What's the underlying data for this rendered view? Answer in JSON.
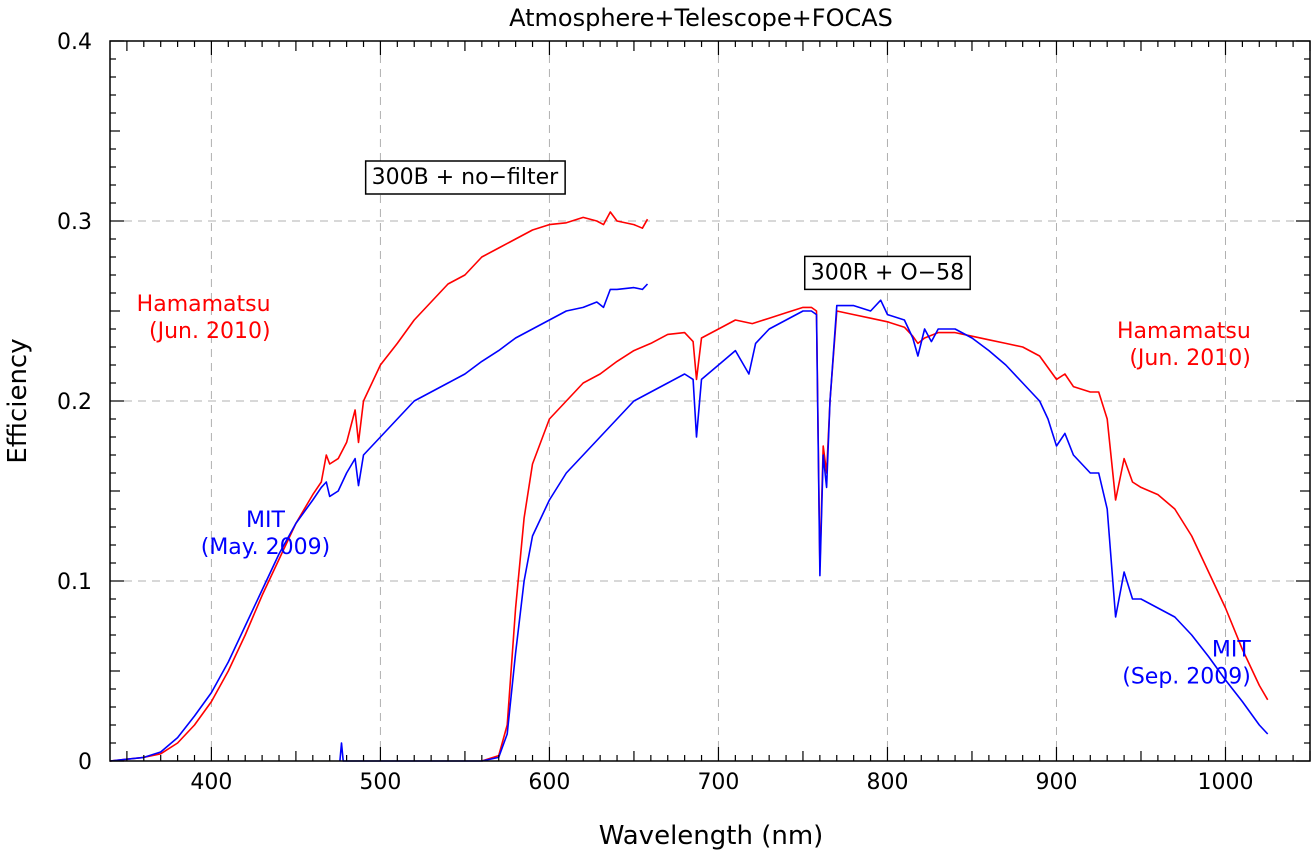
{
  "chart_data": {
    "type": "line",
    "title": "Atmosphere+Telescope+FOCAS",
    "xlabel": "Wavelength (nm)",
    "ylabel": "Efficiency",
    "xlim": [
      340,
      1050
    ],
    "ylim": [
      0,
      0.4
    ],
    "x_ticks": [
      400,
      500,
      600,
      700,
      800,
      900,
      1000
    ],
    "y_ticks": [
      0,
      0.1,
      0.2,
      0.3,
      0.4
    ],
    "y_tick_labels": [
      "0",
      "0.1",
      "0.2",
      "0.3",
      "0.4"
    ],
    "grid": true,
    "colors": {
      "hamamatsu": "#ff0000",
      "mit": "#0000ff"
    },
    "boxes": [
      {
        "label": "300B + no−filter",
        "x": 550,
        "y": 0.325
      },
      {
        "label": "300R + O−58",
        "x": 800,
        "y": 0.272
      }
    ],
    "annotations": [
      {
        "lines": [
          "Hamamatsu",
          "(Jun. 2010)"
        ],
        "x": 435,
        "y": 0.25,
        "color": "#ff0000",
        "align": "end"
      },
      {
        "lines": [
          "MIT",
          "(May. 2009)"
        ],
        "x": 432,
        "y": 0.13,
        "color": "#0000ff",
        "align": "middle"
      },
      {
        "lines": [
          "Hamamatsu",
          "(Jun. 2010)"
        ],
        "x": 1015,
        "y": 0.235,
        "color": "#ff0000",
        "align": "end"
      },
      {
        "lines": [
          "MIT",
          "(Sep. 2009)"
        ],
        "x": 1015,
        "y": 0.058,
        "color": "#0000ff",
        "align": "end"
      }
    ],
    "series": [
      {
        "name": "Hamamatsu (Jun. 2010) 300B + no−filter",
        "color": "#ff0000",
        "x": [
          340,
          360,
          370,
          380,
          390,
          400,
          410,
          420,
          430,
          440,
          450,
          460,
          465,
          468,
          470,
          475,
          480,
          485,
          487,
          490,
          500,
          510,
          520,
          530,
          540,
          550,
          560,
          570,
          580,
          590,
          600,
          610,
          620,
          628,
          632,
          636,
          640,
          650,
          655,
          658
        ],
        "y": [
          0,
          0.002,
          0.004,
          0.01,
          0.02,
          0.033,
          0.05,
          0.07,
          0.092,
          0.112,
          0.132,
          0.148,
          0.155,
          0.17,
          0.165,
          0.168,
          0.177,
          0.195,
          0.177,
          0.2,
          0.22,
          0.232,
          0.245,
          0.255,
          0.265,
          0.27,
          0.28,
          0.285,
          0.29,
          0.295,
          0.298,
          0.299,
          0.302,
          0.3,
          0.298,
          0.305,
          0.3,
          0.298,
          0.296,
          0.301
        ]
      },
      {
        "name": "MIT (May. 2009) 300B + no−filter",
        "color": "#0000ff",
        "x": [
          340,
          360,
          370,
          380,
          390,
          400,
          410,
          420,
          430,
          440,
          450,
          460,
          465,
          468,
          470,
          475,
          480,
          485,
          487,
          490,
          500,
          510,
          520,
          530,
          540,
          550,
          560,
          570,
          580,
          590,
          600,
          610,
          620,
          628,
          632,
          636,
          640,
          650,
          655,
          658
        ],
        "y": [
          0,
          0.002,
          0.005,
          0.013,
          0.025,
          0.038,
          0.055,
          0.075,
          0.095,
          0.115,
          0.132,
          0.145,
          0.152,
          0.155,
          0.147,
          0.15,
          0.16,
          0.168,
          0.153,
          0.17,
          0.18,
          0.19,
          0.2,
          0.205,
          0.21,
          0.215,
          0.222,
          0.228,
          0.235,
          0.24,
          0.245,
          0.25,
          0.252,
          0.255,
          0.252,
          0.262,
          0.262,
          0.263,
          0.262,
          0.265
        ]
      },
      {
        "name": "Hamamatsu (Jun. 2010) 300R + O−58",
        "color": "#ff0000",
        "x": [
          560,
          570,
          575,
          580,
          585,
          590,
          600,
          610,
          620,
          630,
          640,
          650,
          660,
          670,
          680,
          685,
          687,
          690,
          700,
          710,
          720,
          730,
          740,
          750,
          755,
          758,
          760,
          762,
          764,
          766,
          770,
          780,
          790,
          800,
          810,
          815,
          818,
          822,
          830,
          840,
          850,
          860,
          870,
          880,
          890,
          900,
          905,
          910,
          920,
          925,
          930,
          935,
          940,
          945,
          950,
          960,
          970,
          980,
          990,
          1000,
          1010,
          1020,
          1025
        ],
        "y": [
          0,
          0.003,
          0.02,
          0.085,
          0.135,
          0.165,
          0.19,
          0.2,
          0.21,
          0.215,
          0.222,
          0.228,
          0.232,
          0.237,
          0.238,
          0.233,
          0.212,
          0.235,
          0.24,
          0.245,
          0.243,
          0.246,
          0.249,
          0.252,
          0.252,
          0.25,
          0.108,
          0.175,
          0.16,
          0.2,
          0.25,
          0.248,
          0.246,
          0.244,
          0.241,
          0.236,
          0.232,
          0.235,
          0.238,
          0.238,
          0.236,
          0.234,
          0.232,
          0.23,
          0.225,
          0.212,
          0.215,
          0.208,
          0.205,
          0.205,
          0.19,
          0.145,
          0.168,
          0.155,
          0.152,
          0.148,
          0.14,
          0.125,
          0.105,
          0.085,
          0.062,
          0.042,
          0.034
        ]
      },
      {
        "name": "MIT (Sep. 2009) 300R + O−58",
        "color": "#0000ff",
        "x": [
          476,
          477,
          478,
          560,
          570,
          575,
          580,
          585,
          590,
          600,
          610,
          620,
          630,
          640,
          650,
          660,
          670,
          680,
          685,
          687,
          690,
          700,
          710,
          718,
          722,
          730,
          740,
          750,
          755,
          758,
          760,
          762,
          764,
          766,
          770,
          780,
          790,
          796,
          800,
          810,
          815,
          818,
          822,
          826,
          830,
          840,
          850,
          860,
          870,
          880,
          890,
          895,
          900,
          905,
          910,
          920,
          925,
          930,
          935,
          940,
          945,
          950,
          960,
          970,
          980,
          990,
          1000,
          1010,
          1020,
          1025
        ],
        "y": [
          0,
          0.01,
          0,
          0,
          0.002,
          0.015,
          0.06,
          0.1,
          0.125,
          0.145,
          0.16,
          0.17,
          0.18,
          0.19,
          0.2,
          0.205,
          0.21,
          0.215,
          0.212,
          0.18,
          0.212,
          0.22,
          0.228,
          0.215,
          0.232,
          0.24,
          0.245,
          0.25,
          0.25,
          0.248,
          0.103,
          0.17,
          0.152,
          0.2,
          0.253,
          0.253,
          0.25,
          0.256,
          0.248,
          0.245,
          0.235,
          0.225,
          0.24,
          0.233,
          0.24,
          0.24,
          0.235,
          0.228,
          0.22,
          0.21,
          0.2,
          0.19,
          0.175,
          0.182,
          0.17,
          0.16,
          0.16,
          0.14,
          0.08,
          0.105,
          0.09,
          0.09,
          0.085,
          0.08,
          0.07,
          0.058,
          0.045,
          0.033,
          0.02,
          0.015
        ]
      }
    ]
  }
}
